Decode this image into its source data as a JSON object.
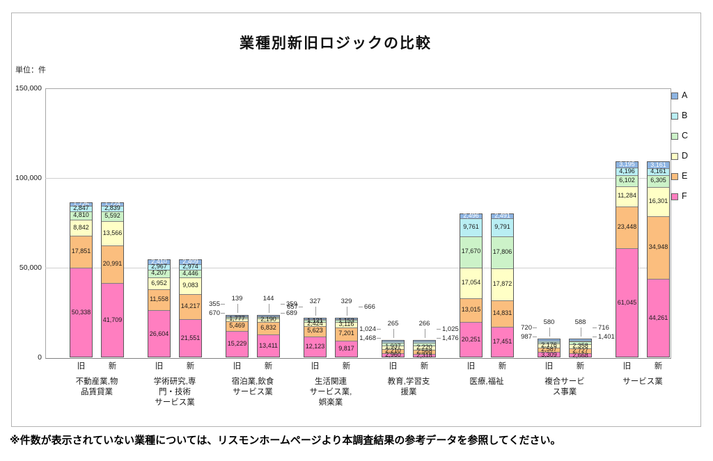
{
  "title": "業種別新旧ロジックの比較",
  "unit_label": "単位：件",
  "note": "※件数が表示されていない業種については、リスモンホームページより本調査結果の参考データを参照してください。",
  "bar_header": {
    "old": "旧",
    "new": "新"
  },
  "y_axis": {
    "max": 150000,
    "ticks": [
      {
        "label": "0",
        "value": 0
      },
      {
        "label": "50,000",
        "value": 50000
      },
      {
        "label": "100,000",
        "value": 100000
      },
      {
        "label": "150,000",
        "value": 150000
      }
    ]
  },
  "legend": [
    {
      "name": "A",
      "color": "#8DB4E2"
    },
    {
      "name": "B",
      "color": "#B9EEF3"
    },
    {
      "name": "C",
      "color": "#CCF2C8"
    },
    {
      "name": "D",
      "color": "#FFFFC6"
    },
    {
      "name": "E",
      "color": "#FBBE7E"
    },
    {
      "name": "F",
      "color": "#FF7EC0"
    }
  ],
  "chart_data": {
    "type": "bar",
    "stacked": true,
    "grid": true,
    "legend_position": "right",
    "ylim": [
      0,
      150000
    ],
    "stack_order_bottom_to_top": [
      "F",
      "E",
      "D",
      "C",
      "B",
      "A"
    ],
    "groups": [
      {
        "category_lines": [
          "不動産業,物",
          "品賃貸業"
        ],
        "bars": [
          {
            "name": "旧",
            "values": {
              "A": "1,726",
              "B": "2,847",
              "C": "4,810",
              "D": "8,842",
              "E": "17,851",
              "F": "50,338"
            },
            "callouts": []
          },
          {
            "name": "新",
            "values": {
              "A": "1,724",
              "B": "2,839",
              "C": "5,592",
              "D": "13,566",
              "E": "20,991",
              "F": "41,709"
            },
            "callouts": []
          }
        ]
      },
      {
        "category_lines": [
          "学術研究,専",
          "門・技術",
          "サービス業"
        ],
        "bars": [
          {
            "name": "旧",
            "values": {
              "A": "2,410",
              "B": "2,967",
              "C": "4,207",
              "D": "6,952",
              "E": "11,558",
              "F": "26,604"
            },
            "callouts": []
          },
          {
            "name": "新",
            "values": {
              "A": "2,409",
              "B": "2,974",
              "C": "4,446",
              "D": "9,083",
              "E": "14,217",
              "F": "21,551"
            },
            "callouts": []
          }
        ]
      },
      {
        "category_lines": [
          "宿泊業,飲食",
          "サービス業"
        ],
        "bars": [
          {
            "name": "旧",
            "values": {
              "A": "139",
              "B": "355",
              "C": "670",
              "D": "1,777",
              "E": "5,469",
              "F": "15,229"
            },
            "callouts": [
              {
                "series": "A",
                "side": "above"
              },
              {
                "series": "B",
                "side": "left"
              },
              {
                "series": "C",
                "side": "left"
              }
            ]
          },
          {
            "name": "新",
            "values": {
              "A": "144",
              "B": "359",
              "C": "689",
              "D": "2,190",
              "E": "6,832",
              "F": "13,411"
            },
            "callouts": [
              {
                "series": "A",
                "side": "above"
              },
              {
                "series": "B",
                "side": "right"
              },
              {
                "series": "C",
                "side": "right"
              }
            ]
          }
        ]
      },
      {
        "category_lines": [
          "生活関連",
          "サービス業,",
          "娯楽業"
        ],
        "bars": [
          {
            "name": "旧",
            "values": {
              "A": "327",
              "B": "657",
              "C": "1,121",
              "D": "2,424",
              "E": "5,623",
              "F": "12,123"
            },
            "callouts": [
              {
                "series": "A",
                "side": "above"
              },
              {
                "series": "B",
                "side": "left"
              }
            ]
          },
          {
            "name": "新",
            "values": {
              "A": "329",
              "B": "666",
              "C": "1,153",
              "D": "3,116",
              "E": "7,201",
              "F": "9,817"
            },
            "callouts": [
              {
                "series": "A",
                "side": "above"
              },
              {
                "series": "B",
                "side": "right"
              }
            ]
          }
        ]
      },
      {
        "category_lines": [
          "教育,学習支",
          "援業"
        ],
        "bars": [
          {
            "name": "旧",
            "values": {
              "A": "265",
              "B": "1,024",
              "C": "1,468",
              "D": "1,937",
              "E": "2,210",
              "F": "2,960"
            },
            "callouts": [
              {
                "series": "A",
                "side": "above"
              },
              {
                "series": "B",
                "side": "left"
              },
              {
                "series": "C",
                "side": "left"
              }
            ]
          },
          {
            "name": "新",
            "values": {
              "A": "266",
              "B": "1,025",
              "C": "1,476",
              "D": "2,220",
              "E": "2,568",
              "F": "2,318"
            },
            "callouts": [
              {
                "series": "A",
                "side": "above"
              },
              {
                "series": "B",
                "side": "right"
              },
              {
                "series": "C",
                "side": "right"
              }
            ]
          }
        ]
      },
      {
        "category_lines": [
          "医療,福祉"
        ],
        "bars": [
          {
            "name": "旧",
            "values": {
              "A": "2,496",
              "B": "9,761",
              "C": "17,670",
              "D": "17,054",
              "E": "13,015",
              "F": "20,251"
            },
            "callouts": []
          },
          {
            "name": "新",
            "values": {
              "A": "2,491",
              "B": "9,791",
              "C": "17,806",
              "D": "17,872",
              "E": "14,831",
              "F": "17,451"
            },
            "callouts": []
          }
        ]
      },
      {
        "category_lines": [
          "複合サービ",
          "ス事業"
        ],
        "bars": [
          {
            "name": "旧",
            "values": {
              "A": "580",
              "B": "720",
              "C": "987",
              "D": "2,176",
              "E": "2,587",
              "F": "3,309"
            },
            "callouts": [
              {
                "series": "A",
                "side": "above"
              },
              {
                "series": "B",
                "side": "left"
              },
              {
                "series": "C",
                "side": "left"
              }
            ]
          },
          {
            "name": "新",
            "values": {
              "A": "588",
              "B": "716",
              "C": "1,401",
              "D": "2,358",
              "E": "2,727",
              "F": "2,668"
            },
            "callouts": [
              {
                "series": "A",
                "side": "above"
              },
              {
                "series": "B",
                "side": "right"
              },
              {
                "series": "C",
                "side": "right"
              }
            ]
          }
        ]
      },
      {
        "category_lines": [
          "サービス業"
        ],
        "bars": [
          {
            "name": "旧",
            "values": {
              "A": "3,195",
              "B": "4,196",
              "C": "6,102",
              "D": "11,284",
              "E": "23,448",
              "F": "61,045"
            },
            "callouts": []
          },
          {
            "name": "新",
            "values": {
              "A": "3,161",
              "B": "4,161",
              "C": "6,305",
              "D": "16,301",
              "E": "34,948",
              "F": "44,261"
            },
            "callouts": []
          }
        ]
      }
    ]
  }
}
